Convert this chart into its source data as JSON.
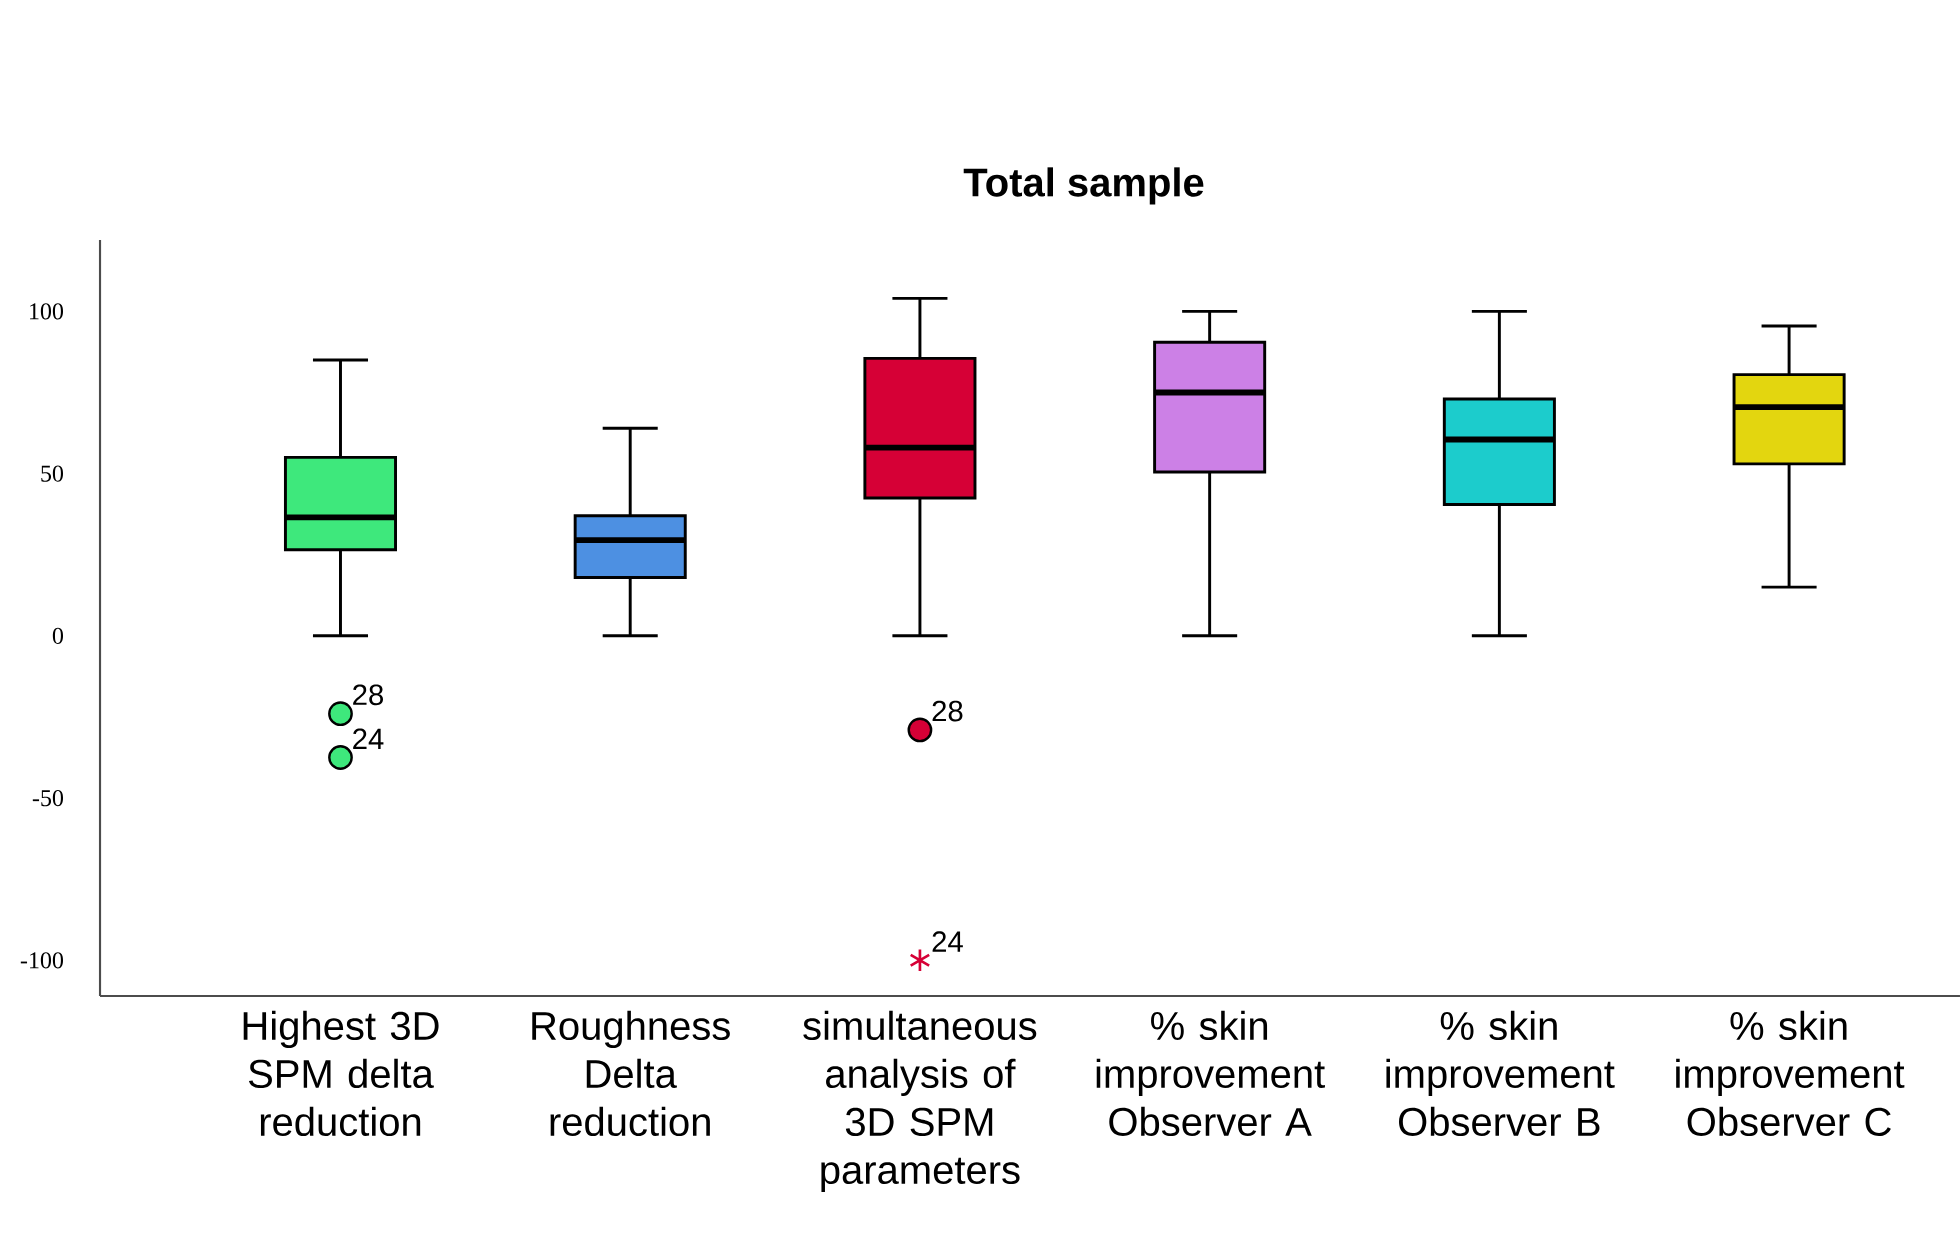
{
  "chart_data": {
    "type": "box",
    "title": "Total sample",
    "categories": [
      "Highest 3D SPM delta reduction",
      "Roughness Delta reduction",
      "simultaneous analysis of 3D SPM parameters",
      "% skin improvement Observer A",
      "% skin improvement Observer B",
      "% skin improvement Observer C"
    ],
    "boxes": [
      {
        "low": 0,
        "q1": 26.5,
        "median": 36.5,
        "q3": 55,
        "high": 85,
        "outliers": [
          -24,
          -37.5
        ]
      },
      {
        "low": 0,
        "q1": 18,
        "median": 29.5,
        "q3": 37,
        "high": 64
      },
      {
        "low": 0,
        "q1": 42.5,
        "median": 58,
        "q3": 85.5,
        "high": 104,
        "outliers": [
          -29,
          -100
        ]
      },
      {
        "low": 0,
        "q1": 50.5,
        "median": 75,
        "q3": 90.5,
        "high": 100
      },
      {
        "low": 0,
        "q1": 40.5,
        "median": 60.5,
        "q3": 73,
        "high": 100
      },
      {
        "low": 15,
        "q1": 53,
        "median": 70.5,
        "q3": 80.5,
        "high": 95.5
      }
    ],
    "colors": [
      "#3ee87c",
      "#4d90e2",
      "#d60036",
      "#cc80e6",
      "#1ccccc",
      "#e3d60f"
    ],
    "ylim": [
      -111,
      122
    ],
    "yticks": [
      -100,
      -50,
      0,
      50,
      100
    ],
    "annotations": [
      "28",
      "24",
      "28",
      "24"
    ]
  }
}
